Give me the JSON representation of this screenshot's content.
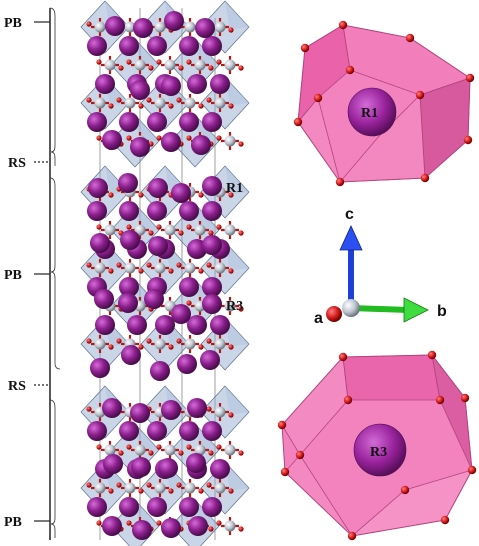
{
  "layer_labels": [
    "PB",
    "RS",
    "PB",
    "RS",
    "PB"
  ],
  "site_labels": {
    "left_upper": "R1",
    "left_lower": "R3",
    "poly_upper": "R1",
    "poly_lower": "R3"
  },
  "axes": {
    "a": "a",
    "b": "b",
    "c": "c"
  },
  "colors": {
    "octahedron_fill": "#8aa4cc",
    "octahedron_edge": "#5d6f8d",
    "big_atom": "#8a1f8c",
    "metal_atom": "#c8cfd8",
    "oxygen": "#c81e1e",
    "polyhedron_fill": "#ee5aa8",
    "axis_a": "#b01010",
    "axis_b": "#22bb22",
    "axis_c": "#1f3fd6"
  }
}
